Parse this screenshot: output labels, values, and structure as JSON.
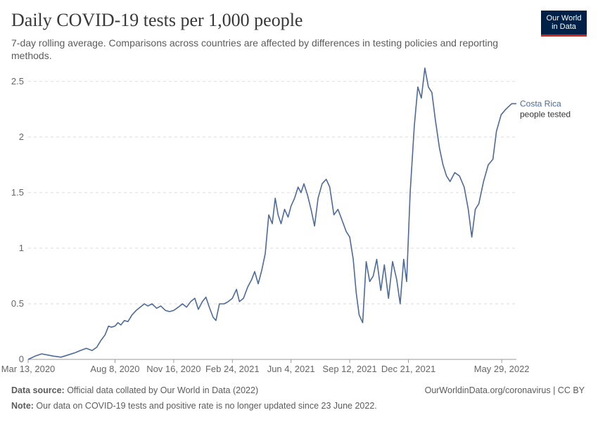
{
  "header": {
    "title": "Daily COVID-19 tests per 1,000 people",
    "subtitle": "7-day rolling average. Comparisons across countries are affected by differences in testing policies and reporting methods."
  },
  "logo": {
    "line1": "Our World",
    "line2": "in Data"
  },
  "footer": {
    "source_label": "Data source:",
    "source_text": " Official data collated by Our World in Data (2022)",
    "link": "OurWorldinData.org/coronavirus | CC BY",
    "note_label": "Note:",
    "note_text": " Our data on COVID-19 tests and positive rate is no longer updated since 23 June 2022."
  },
  "colors": {
    "series": "#4c6a9c",
    "grid": "#dddddd",
    "axis": "#999999"
  },
  "chart_data": {
    "type": "line",
    "title": "Daily COVID-19 tests per 1,000 people",
    "x_type": "date",
    "x_ticks": [
      "Mar 13, 2020",
      "Aug 8, 2020",
      "Nov 16, 2020",
      "Feb 24, 2021",
      "Jun 4, 2021",
      "Sep 12, 2021",
      "Dec 21, 2021",
      "May 29, 2022"
    ],
    "y_ticks": [
      0,
      0.5,
      1,
      1.5,
      2,
      2.5
    ],
    "y_tick_labels": [
      "0",
      "0.5",
      "1",
      "1.5",
      "2",
      "2.5"
    ],
    "xlim": [
      "2020-03-13",
      "2022-06-23"
    ],
    "ylim": [
      0,
      2.6
    ],
    "grid": "horizontal dashed",
    "series": [
      {
        "name": "Costa Rica",
        "sublabel": "people tested",
        "points": [
          [
            "2020-03-13",
            0.0
          ],
          [
            "2020-03-25",
            0.03
          ],
          [
            "2020-04-05",
            0.05
          ],
          [
            "2020-04-15",
            0.04
          ],
          [
            "2020-04-25",
            0.03
          ],
          [
            "2020-05-08",
            0.02
          ],
          [
            "2020-05-20",
            0.04
          ],
          [
            "2020-06-01",
            0.06
          ],
          [
            "2020-06-10",
            0.08
          ],
          [
            "2020-06-20",
            0.1
          ],
          [
            "2020-06-30",
            0.08
          ],
          [
            "2020-07-08",
            0.11
          ],
          [
            "2020-07-15",
            0.17
          ],
          [
            "2020-07-22",
            0.22
          ],
          [
            "2020-07-28",
            0.3
          ],
          [
            "2020-08-02",
            0.29
          ],
          [
            "2020-08-08",
            0.3
          ],
          [
            "2020-08-13",
            0.33
          ],
          [
            "2020-08-18",
            0.31
          ],
          [
            "2020-08-24",
            0.35
          ],
          [
            "2020-08-30",
            0.34
          ],
          [
            "2020-09-06",
            0.4
          ],
          [
            "2020-09-13",
            0.44
          ],
          [
            "2020-09-20",
            0.47
          ],
          [
            "2020-09-27",
            0.5
          ],
          [
            "2020-10-03",
            0.48
          ],
          [
            "2020-10-10",
            0.5
          ],
          [
            "2020-10-18",
            0.46
          ],
          [
            "2020-10-25",
            0.48
          ],
          [
            "2020-11-02",
            0.44
          ],
          [
            "2020-11-09",
            0.43
          ],
          [
            "2020-11-16",
            0.44
          ],
          [
            "2020-11-24",
            0.47
          ],
          [
            "2020-12-01",
            0.5
          ],
          [
            "2020-12-08",
            0.47
          ],
          [
            "2020-12-15",
            0.52
          ],
          [
            "2020-12-22",
            0.55
          ],
          [
            "2020-12-28",
            0.45
          ],
          [
            "2021-01-04",
            0.52
          ],
          [
            "2021-01-10",
            0.56
          ],
          [
            "2021-01-15",
            0.48
          ],
          [
            "2021-01-22",
            0.38
          ],
          [
            "2021-01-27",
            0.35
          ],
          [
            "2021-02-02",
            0.5
          ],
          [
            "2021-02-10",
            0.5
          ],
          [
            "2021-02-17",
            0.52
          ],
          [
            "2021-02-24",
            0.55
          ],
          [
            "2021-03-03",
            0.63
          ],
          [
            "2021-03-08",
            0.52
          ],
          [
            "2021-03-15",
            0.55
          ],
          [
            "2021-03-22",
            0.65
          ],
          [
            "2021-03-29",
            0.72
          ],
          [
            "2021-04-03",
            0.79
          ],
          [
            "2021-04-09",
            0.68
          ],
          [
            "2021-04-15",
            0.8
          ],
          [
            "2021-04-21",
            0.95
          ],
          [
            "2021-04-27",
            1.3
          ],
          [
            "2021-05-03",
            1.22
          ],
          [
            "2021-05-08",
            1.45
          ],
          [
            "2021-05-13",
            1.3
          ],
          [
            "2021-05-18",
            1.22
          ],
          [
            "2021-05-24",
            1.35
          ],
          [
            "2021-05-30",
            1.28
          ],
          [
            "2021-06-04",
            1.38
          ],
          [
            "2021-06-10",
            1.45
          ],
          [
            "2021-06-16",
            1.55
          ],
          [
            "2021-06-21",
            1.5
          ],
          [
            "2021-06-26",
            1.58
          ],
          [
            "2021-07-02",
            1.48
          ],
          [
            "2021-07-08",
            1.35
          ],
          [
            "2021-07-14",
            1.2
          ],
          [
            "2021-07-20",
            1.45
          ],
          [
            "2021-07-27",
            1.58
          ],
          [
            "2021-08-03",
            1.62
          ],
          [
            "2021-08-09",
            1.55
          ],
          [
            "2021-08-16",
            1.3
          ],
          [
            "2021-08-23",
            1.35
          ],
          [
            "2021-08-30",
            1.25
          ],
          [
            "2021-09-06",
            1.15
          ],
          [
            "2021-09-12",
            1.1
          ],
          [
            "2021-09-18",
            0.9
          ],
          [
            "2021-09-23",
            0.6
          ],
          [
            "2021-09-28",
            0.4
          ],
          [
            "2021-10-04",
            0.33
          ],
          [
            "2021-10-10",
            0.88
          ],
          [
            "2021-10-16",
            0.7
          ],
          [
            "2021-10-22",
            0.75
          ],
          [
            "2021-10-28",
            0.9
          ],
          [
            "2021-11-04",
            0.62
          ],
          [
            "2021-11-10",
            0.85
          ],
          [
            "2021-11-17",
            0.55
          ],
          [
            "2021-11-24",
            0.88
          ],
          [
            "2021-12-01",
            0.72
          ],
          [
            "2021-12-07",
            0.5
          ],
          [
            "2021-12-13",
            0.9
          ],
          [
            "2021-12-18",
            0.7
          ],
          [
            "2021-12-24",
            1.5
          ],
          [
            "2021-12-31",
            2.1
          ],
          [
            "2022-01-06",
            2.45
          ],
          [
            "2022-01-12",
            2.35
          ],
          [
            "2022-01-18",
            2.62
          ],
          [
            "2022-01-24",
            2.45
          ],
          [
            "2022-01-30",
            2.4
          ],
          [
            "2022-02-05",
            2.15
          ],
          [
            "2022-02-12",
            1.9
          ],
          [
            "2022-02-18",
            1.75
          ],
          [
            "2022-02-24",
            1.65
          ],
          [
            "2022-03-02",
            1.6
          ],
          [
            "2022-03-10",
            1.68
          ],
          [
            "2022-03-18",
            1.65
          ],
          [
            "2022-03-26",
            1.55
          ],
          [
            "2022-04-02",
            1.35
          ],
          [
            "2022-04-08",
            1.1
          ],
          [
            "2022-04-14",
            1.35
          ],
          [
            "2022-04-20",
            1.4
          ],
          [
            "2022-04-28",
            1.6
          ],
          [
            "2022-05-06",
            1.75
          ],
          [
            "2022-05-14",
            1.8
          ],
          [
            "2022-05-20",
            2.05
          ],
          [
            "2022-05-28",
            2.2
          ],
          [
            "2022-06-05",
            2.25
          ],
          [
            "2022-06-15",
            2.3
          ],
          [
            "2022-06-23",
            2.3
          ]
        ]
      }
    ]
  }
}
